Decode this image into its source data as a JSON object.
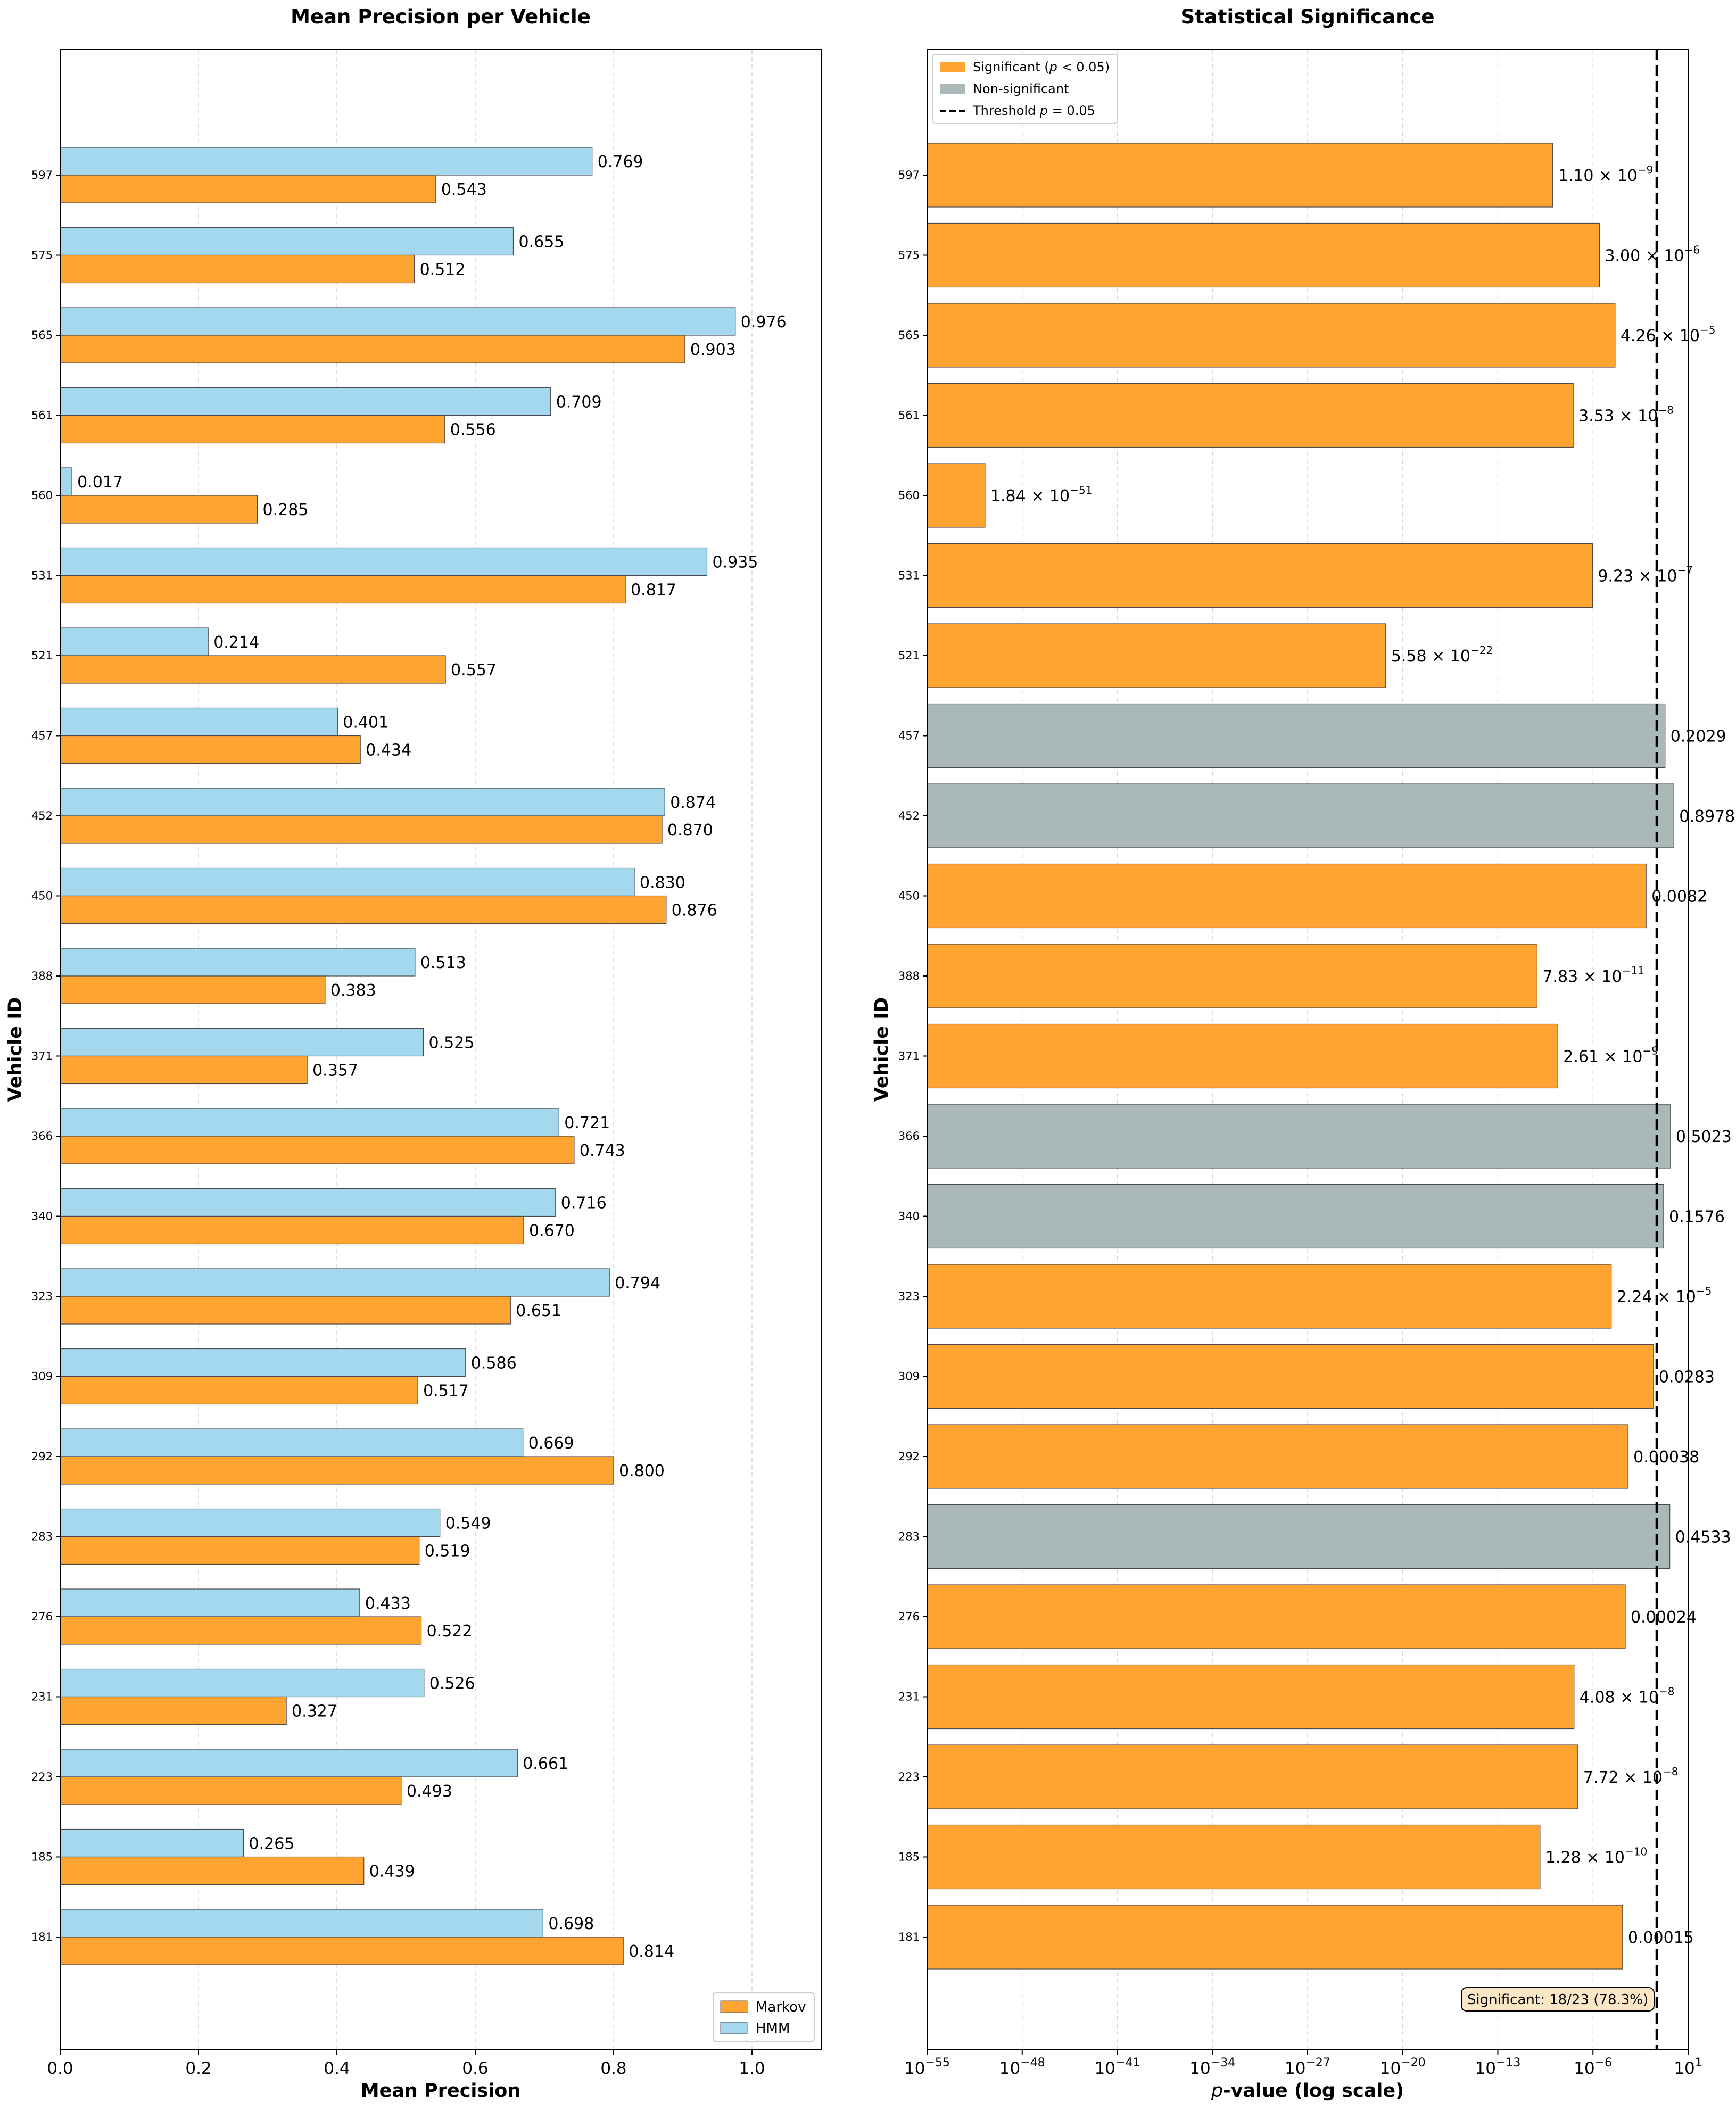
{
  "colors": {
    "markov": "#ffa431",
    "hmm": "#a3d8ef",
    "significant": "#ffa431",
    "nonsignificant": "#aab8b8",
    "summary_bg": "#fbe6c6"
  },
  "chart_data": [
    {
      "type": "bar",
      "orientation": "horizontal",
      "title": "Mean Precision per Vehicle",
      "xlabel": "Mean Precision",
      "ylabel": "Vehicle ID",
      "xlim": [
        0.0,
        1.1
      ],
      "xticks": [
        0.0,
        0.2,
        0.4,
        0.6,
        0.8,
        1.0
      ],
      "xtick_labels": [
        "0.0",
        "0.2",
        "0.4",
        "0.6",
        "0.8",
        "1.0"
      ],
      "grid": "x-dashed",
      "legend_position": "bottom-right",
      "categories": [
        "181",
        "185",
        "223",
        "231",
        "276",
        "283",
        "292",
        "309",
        "323",
        "340",
        "366",
        "371",
        "388",
        "450",
        "452",
        "457",
        "521",
        "531",
        "560",
        "561",
        "565",
        "575",
        "597"
      ],
      "series": [
        {
          "name": "Markov",
          "values": [
            0.814,
            0.439,
            0.493,
            0.327,
            0.522,
            0.519,
            0.8,
            0.517,
            0.651,
            0.67,
            0.743,
            0.357,
            0.383,
            0.876,
            0.87,
            0.434,
            0.557,
            0.817,
            0.285,
            0.556,
            0.903,
            0.512,
            0.543
          ],
          "labels": [
            "0.814",
            "0.439",
            "0.493",
            "0.327",
            "0.522",
            "0.519",
            "0.800",
            "0.517",
            "0.651",
            "0.670",
            "0.743",
            "0.357",
            "0.383",
            "0.876",
            "0.870",
            "0.434",
            "0.557",
            "0.817",
            "0.285",
            "0.556",
            "0.903",
            "0.512",
            "0.543"
          ]
        },
        {
          "name": "HMM",
          "values": [
            0.698,
            0.265,
            0.661,
            0.526,
            0.433,
            0.549,
            0.669,
            0.586,
            0.794,
            0.716,
            0.721,
            0.525,
            0.513,
            0.83,
            0.874,
            0.401,
            0.214,
            0.935,
            0.017,
            0.709,
            0.976,
            0.655,
            0.769
          ],
          "labels": [
            "0.698",
            "0.265",
            "0.661",
            "0.526",
            "0.433",
            "0.549",
            "0.669",
            "0.586",
            "0.794",
            "0.716",
            "0.721",
            "0.525",
            "0.513",
            "0.830",
            "0.874",
            "0.401",
            "0.214",
            "0.935",
            "0.017",
            "0.709",
            "0.976",
            "0.655",
            "0.769"
          ]
        }
      ]
    },
    {
      "type": "bar",
      "orientation": "horizontal",
      "title": "Statistical Significance",
      "xlabel_italic": "p",
      "xlabel_rest": "-value (log scale)",
      "ylabel": "Vehicle ID",
      "xscale": "log",
      "xlim_exponent": [
        -55,
        1
      ],
      "xtick_base": "10",
      "xtick_exponents": [
        "−55",
        "−48",
        "−41",
        "−34",
        "−27",
        "−20",
        "−13",
        "−6",
        "1"
      ],
      "xtick_exponent_values": [
        -55,
        -48,
        -41,
        -34,
        -27,
        -20,
        -13,
        -6,
        1
      ],
      "threshold": 0.05,
      "grid": "x-dashed",
      "legend_position": "top-left",
      "legend": [
        {
          "label_pre": "Significant (",
          "label_it": "p",
          "label_post": " < 0.05)",
          "kind": "significant"
        },
        {
          "label_pre": "Non-significant",
          "label_it": "",
          "label_post": "",
          "kind": "nonsignificant"
        },
        {
          "label_pre": "Threshold ",
          "label_it": "p",
          "label_post": " = 0.05",
          "kind": "threshold"
        }
      ],
      "summary": "Significant: 18/23 (78.3%)",
      "categories": [
        "181",
        "185",
        "223",
        "231",
        "276",
        "283",
        "292",
        "309",
        "323",
        "340",
        "366",
        "371",
        "388",
        "450",
        "452",
        "457",
        "521",
        "531",
        "560",
        "561",
        "565",
        "575",
        "597"
      ],
      "log10_values": [
        -3.824,
        -9.893,
        -7.112,
        -7.389,
        -3.62,
        -0.344,
        -3.42,
        -1.548,
        -4.65,
        -0.802,
        -0.299,
        -8.583,
        -10.106,
        -2.086,
        -0.047,
        -0.693,
        -21.253,
        -6.035,
        -50.735,
        -7.452,
        -4.371,
        -5.523,
        -8.959
      ],
      "significant": [
        true,
        true,
        true,
        true,
        true,
        false,
        true,
        true,
        true,
        false,
        false,
        true,
        true,
        true,
        false,
        false,
        true,
        true,
        true,
        true,
        true,
        true,
        true
      ],
      "labels": [
        {
          "m": "0.00015",
          "e": ""
        },
        {
          "m": "1.28 × 10",
          "e": "−10"
        },
        {
          "m": "7.72 × 10",
          "e": "−8"
        },
        {
          "m": "4.08 × 10",
          "e": "−8"
        },
        {
          "m": "0.00024",
          "e": ""
        },
        {
          "m": "0.4533",
          "e": ""
        },
        {
          "m": "0.00038",
          "e": ""
        },
        {
          "m": "0.0283",
          "e": ""
        },
        {
          "m": "2.24 × 10",
          "e": "−5"
        },
        {
          "m": "0.1576",
          "e": ""
        },
        {
          "m": "0.5023",
          "e": ""
        },
        {
          "m": "2.61 × 10",
          "e": "−9"
        },
        {
          "m": "7.83 × 10",
          "e": "−11"
        },
        {
          "m": "0.0082",
          "e": ""
        },
        {
          "m": "0.8978",
          "e": ""
        },
        {
          "m": "0.2029",
          "e": ""
        },
        {
          "m": "5.58 × 10",
          "e": "−22"
        },
        {
          "m": "9.23 × 10",
          "e": "−7"
        },
        {
          "m": "1.84 × 10",
          "e": "−51"
        },
        {
          "m": "3.53 × 10",
          "e": "−8"
        },
        {
          "m": "4.26 × 10",
          "e": "−5"
        },
        {
          "m": "3.00 × 10",
          "e": "−6"
        },
        {
          "m": "1.10 × 10",
          "e": "−9"
        }
      ]
    }
  ]
}
